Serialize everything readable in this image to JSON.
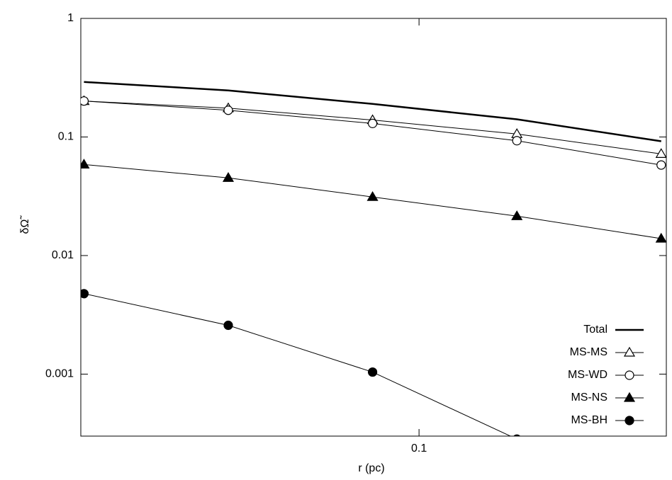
{
  "chart_data": {
    "type": "line",
    "x_label": "r (pc)",
    "y_label": "δΩ̃",
    "x": [
      0.02,
      0.04,
      0.08,
      0.16,
      0.32
    ],
    "log_x": true,
    "log_y": true,
    "xlim": [
      0.0197,
      0.328
    ],
    "ylim": [
      0.0003,
      1
    ],
    "xticks": [
      0.1
    ],
    "yticks": [
      0.001,
      0.01,
      0.1,
      1
    ],
    "legend": "lower right",
    "series": [
      {
        "name": "Total",
        "color": "#000000",
        "marker": "none",
        "width": 2.5,
        "values": [
          0.291,
          0.247,
          0.19,
          0.141,
          0.092
        ]
      },
      {
        "name": "MS-MS",
        "color": "#000000",
        "marker": "triangle-open",
        "width": 1,
        "values": [
          0.201,
          0.175,
          0.139,
          0.106,
          0.072
        ]
      },
      {
        "name": "MS-WD",
        "color": "#000000",
        "marker": "circle-open",
        "width": 1,
        "values": [
          0.201,
          0.168,
          0.13,
          0.093,
          0.058
        ]
      },
      {
        "name": "MS-NS",
        "color": "#000000",
        "marker": "triangle-filled",
        "width": 1,
        "values": [
          0.0586,
          0.0452,
          0.0312,
          0.0215,
          0.0139
        ]
      },
      {
        "name": "MS-BH",
        "color": "#000000",
        "marker": "circle-filled",
        "width": 1,
        "values": [
          0.00477,
          0.00258,
          0.00104,
          0.000283,
          null
        ]
      }
    ]
  }
}
